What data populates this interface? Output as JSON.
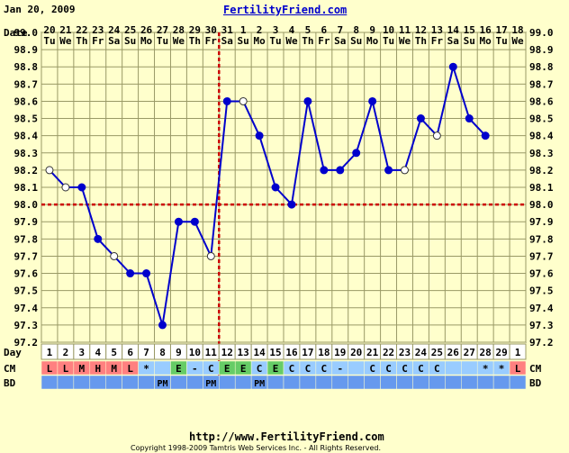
{
  "header": {
    "date": "Jan 20, 2009",
    "site": "FertilityFriend.com"
  },
  "footer": {
    "url": "http://www.FertilityFriend.com",
    "copyright": "Copyright 1998-2009 Tamtris Web Services Inc. - All Rights Reserved."
  },
  "row_labels": {
    "date": "Date",
    "day": "Day",
    "cm": "CM",
    "bd": "BD"
  },
  "chart_data": {
    "type": "line",
    "ylim": [
      97.2,
      99.0
    ],
    "y_ticks": [
      "99.0",
      "98.9",
      "98.8",
      "98.7",
      "98.6",
      "98.5",
      "98.4",
      "98.3",
      "98.2",
      "98.1",
      "98.0",
      "97.9",
      "97.8",
      "97.7",
      "97.6",
      "97.5",
      "97.4",
      "97.3",
      "97.2"
    ],
    "dates": [
      "20",
      "21",
      "22",
      "23",
      "24",
      "25",
      "26",
      "27",
      "28",
      "29",
      "30",
      "31",
      "1",
      "2",
      "3",
      "4",
      "5",
      "6",
      "7",
      "8",
      "9",
      "10",
      "11",
      "12",
      "13",
      "14",
      "15",
      "16",
      "17",
      "18"
    ],
    "weekdays": [
      "Tu",
      "We",
      "Th",
      "Fr",
      "Sa",
      "Su",
      "Mo",
      "Tu",
      "We",
      "Th",
      "Fr",
      "Sa",
      "Su",
      "Mo",
      "Tu",
      "We",
      "Th",
      "Fr",
      "Sa",
      "Su",
      "Mo",
      "Tu",
      "We",
      "Th",
      "Fr",
      "Sa",
      "Su",
      "Mo",
      "Tu",
      "We"
    ],
    "days": [
      "1",
      "2",
      "3",
      "4",
      "5",
      "6",
      "7",
      "8",
      "9",
      "10",
      "11",
      "12",
      "13",
      "14",
      "15",
      "16",
      "17",
      "18",
      "19",
      "20",
      "21",
      "22",
      "23",
      "24",
      "25",
      "26",
      "27",
      "28",
      "29",
      "1"
    ],
    "temps": [
      98.2,
      98.1,
      98.1,
      97.8,
      97.7,
      97.6,
      97.6,
      97.3,
      97.9,
      97.9,
      97.7,
      98.6,
      98.6,
      98.4,
      98.1,
      98.0,
      98.6,
      98.2,
      98.2,
      98.3,
      98.6,
      98.2,
      98.2,
      98.5,
      98.4,
      98.8,
      98.5,
      98.4,
      null,
      null
    ],
    "open_points": [
      true,
      true,
      false,
      false,
      true,
      false,
      false,
      false,
      false,
      false,
      true,
      false,
      true,
      false,
      false,
      false,
      false,
      false,
      false,
      false,
      false,
      false,
      true,
      false,
      true,
      false,
      false,
      false,
      false,
      false
    ],
    "coverline": 98.0,
    "ovulation_day_index": 10,
    "cm": [
      "L",
      "L",
      "M",
      "H",
      "M",
      "L",
      "*",
      "",
      "E",
      "-",
      "C",
      "E",
      "E",
      "C",
      "E",
      "C",
      "C",
      "C",
      "-",
      "",
      "C",
      "C",
      "C",
      "C",
      "C",
      "",
      "",
      "*",
      "*",
      "L"
    ],
    "bd": [
      "",
      "",
      "",
      "",
      "",
      "",
      "",
      "PM",
      "",
      "",
      "PM",
      "",
      "",
      "PM",
      "",
      "",
      "",
      "",
      "",
      "",
      "",
      "",
      "",
      "",
      "",
      "",
      "",
      "",
      "",
      ""
    ],
    "colors": {
      "line": "#0000cc",
      "grid": "#999966",
      "coverline": "#cc0000",
      "cm_red": "#ff8080",
      "cm_green": "#66cc66",
      "cm_blue": "#99ccff",
      "bd_blue": "#6699ee",
      "plot_bg": "#ffffcc"
    }
  }
}
